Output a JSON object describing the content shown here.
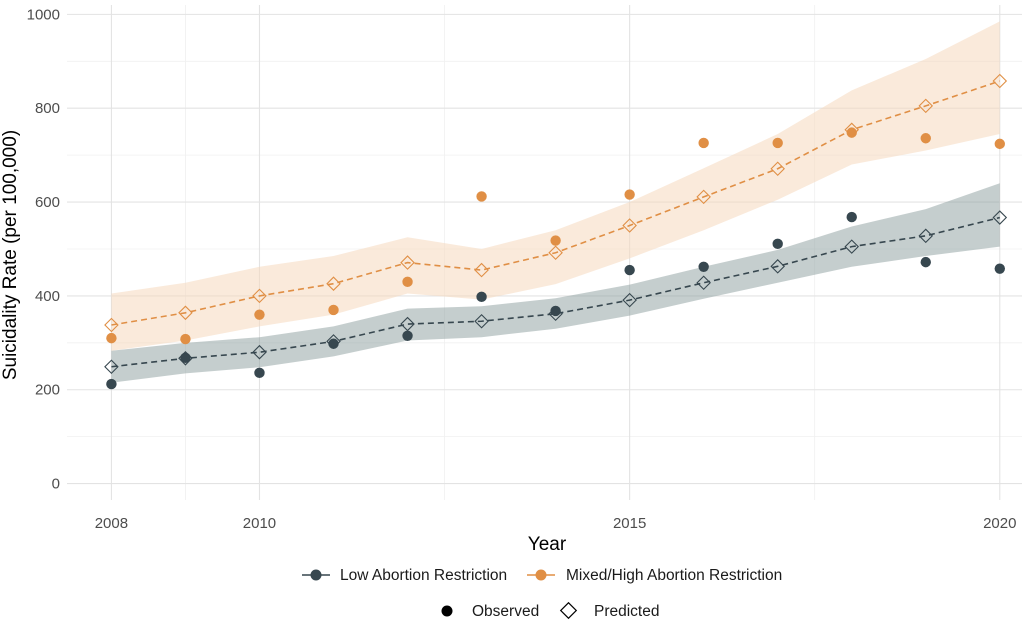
{
  "chart_data": {
    "type": "line",
    "xlabel": "Year",
    "ylabel": "Suicidality Rate (per 100,000)",
    "xlim": [
      2007.4,
      2020.3
    ],
    "ylim": [
      -35,
      1020
    ],
    "x_ticks": [
      2008,
      2010,
      2015,
      2020
    ],
    "x_tick_labels": [
      "2008",
      "2010",
      "2015",
      "2020"
    ],
    "x_minor_ticks": [
      2009,
      2012.5,
      2017.5
    ],
    "y_ticks": [
      0,
      200,
      400,
      600,
      800,
      1000
    ],
    "y_tick_labels": [
      "0",
      "200",
      "400",
      "600",
      "800",
      "1000"
    ],
    "y_minor_ticks": [
      100,
      300,
      500,
      700,
      900
    ],
    "grid": true,
    "x": [
      2008,
      2009,
      2010,
      2011,
      2012,
      2013,
      2014,
      2015,
      2016,
      2017,
      2018,
      2019,
      2020
    ],
    "series": [
      {
        "name": "Low Abortion Restriction",
        "color": "#37474f",
        "band_color": "#8c9e9e",
        "observed": [
          212,
          268,
          236,
          298,
          315,
          398,
          368,
          455,
          462,
          511,
          568,
          472,
          458
        ],
        "predicted": [
          249,
          267,
          280,
          303,
          340,
          346,
          362,
          391,
          428,
          463,
          505,
          528,
          567
        ],
        "lower": [
          215,
          235,
          248,
          271,
          305,
          312,
          330,
          358,
          394,
          428,
          462,
          485,
          505
        ],
        "upper": [
          283,
          300,
          312,
          335,
          373,
          378,
          395,
          424,
          462,
          498,
          548,
          585,
          640
        ]
      },
      {
        "name": "Mixed/High Abortion Restriction",
        "color": "#e08f45",
        "band_color": "#f6d9be",
        "observed": [
          310,
          308,
          360,
          370,
          430,
          612,
          518,
          616,
          726,
          726,
          748,
          736,
          724
        ],
        "predicted": [
          338,
          364,
          400,
          426,
          471,
          455,
          492,
          550,
          611,
          671,
          754,
          805,
          858
        ],
        "lower": [
          283,
          305,
          335,
          360,
          405,
          392,
          425,
          480,
          540,
          605,
          680,
          710,
          745
        ],
        "upper": [
          405,
          428,
          462,
          485,
          525,
          500,
          540,
          600,
          672,
          745,
          838,
          905,
          985
        ]
      }
    ],
    "legend": {
      "series_entries": [
        "Low Abortion Restriction",
        "Mixed/High Abortion Restriction"
      ],
      "shape_entries": [
        "Observed",
        "Predicted"
      ],
      "placement": "bottom"
    }
  }
}
